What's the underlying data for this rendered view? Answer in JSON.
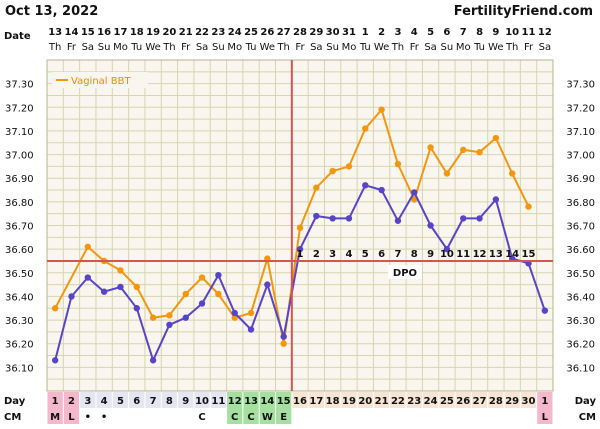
{
  "header": {
    "date": "Oct 13, 2022",
    "site": "FertilityFriend.com"
  },
  "labels": {
    "date_row": "Date",
    "day_row": "Day",
    "cm_row": "CM",
    "dpo": "DPO"
  },
  "colors": {
    "bbt_line": "#f5960f",
    "second_line": "#5844c8",
    "coverline": "#d9534f",
    "ovulation_line": "#d9534f",
    "grid": "#d8d4b0",
    "plot_bg": "#f8f6ee",
    "period_highlight": "#f4b8cc",
    "fertile_highlight": "#a5e0a0"
  },
  "chart_data": {
    "type": "line",
    "title": "",
    "legend": {
      "entries": [
        "Vaginal BBT"
      ],
      "placement": "top-left"
    },
    "ylim": [
      36.0,
      37.4
    ],
    "yticks": [
      "37.30",
      "37.20",
      "37.10",
      "37.00",
      "36.90",
      "36.80",
      "36.70",
      "36.60",
      "36.50",
      "36.40",
      "36.30",
      "36.20",
      "36.10"
    ],
    "dates": [
      "13",
      "14",
      "15",
      "16",
      "17",
      "18",
      "19",
      "20",
      "21",
      "22",
      "23",
      "24",
      "25",
      "26",
      "27",
      "28",
      "29",
      "30",
      "31",
      "1",
      "2",
      "3",
      "4",
      "5",
      "6",
      "7",
      "8",
      "9",
      "10",
      "11",
      "12"
    ],
    "weekdays": [
      "Th",
      "Fr",
      "Sa",
      "Su",
      "Mo",
      "Tu",
      "We",
      "Th",
      "Fr",
      "Sa",
      "Su",
      "Mo",
      "Tu",
      "We",
      "Th",
      "Fr",
      "Sa",
      "Su",
      "Mo",
      "Tu",
      "We",
      "Th",
      "Fr",
      "Sa",
      "Su",
      "Mo",
      "Tu",
      "We",
      "Th",
      "Fr",
      "Sa"
    ],
    "cycle_days": [
      "1",
      "2",
      "3",
      "4",
      "5",
      "6",
      "7",
      "8",
      "9",
      "10",
      "11",
      "12",
      "13",
      "14",
      "15",
      "16",
      "17",
      "18",
      "19",
      "20",
      "21",
      "22",
      "23",
      "24",
      "25",
      "26",
      "27",
      "28",
      "29",
      "30",
      "1"
    ],
    "cervical_mucus": [
      "M",
      "L",
      "•",
      "•",
      "",
      "",
      "",
      "",
      "",
      "C",
      "",
      "C",
      "C",
      "W",
      "E",
      "",
      "",
      "",
      "",
      "",
      "",
      "",
      "",
      "",
      "",
      "",
      "",
      "",
      "",
      "",
      "L"
    ],
    "cm_highlight": [
      "period",
      "period",
      "",
      "",
      "",
      "",
      "",
      "",
      "",
      "",
      "",
      "fertile",
      "fertile",
      "fertile",
      "fertile",
      "",
      "",
      "",
      "",
      "",
      "",
      "",
      "",
      "",
      "",
      "",
      "",
      "",
      "",
      "",
      "period"
    ],
    "dpo_labels": [
      "",
      "",
      "",
      "",
      "",
      "",
      "",
      "",
      "",
      "",
      "",
      "",
      "",
      "",
      "",
      "1",
      "2",
      "3",
      "4",
      "5",
      "6",
      "7",
      "8",
      "9",
      "10",
      "11",
      "12",
      "13",
      "14",
      "15",
      ""
    ],
    "coverline": 36.55,
    "ovulation_after_day": 15,
    "series": [
      {
        "name": "Vaginal BBT",
        "values": [
          36.35,
          null,
          36.61,
          36.55,
          36.51,
          36.44,
          36.31,
          36.32,
          36.41,
          36.48,
          36.41,
          36.31,
          36.33,
          36.56,
          36.2,
          36.69,
          36.86,
          36.93,
          36.95,
          37.11,
          37.19,
          36.96,
          36.81,
          37.03,
          36.92,
          37.02,
          37.01,
          37.07,
          36.92,
          36.78,
          null
        ]
      },
      {
        "values": [
          36.13,
          36.4,
          36.48,
          36.42,
          36.44,
          36.35,
          36.13,
          36.28,
          36.31,
          36.37,
          36.49,
          36.33,
          36.26,
          36.45,
          36.23,
          36.6,
          36.74,
          36.73,
          36.73,
          36.87,
          36.85,
          36.72,
          36.84,
          36.7,
          36.6,
          36.73,
          36.73,
          36.81,
          36.56,
          36.54,
          36.34
        ]
      }
    ]
  }
}
